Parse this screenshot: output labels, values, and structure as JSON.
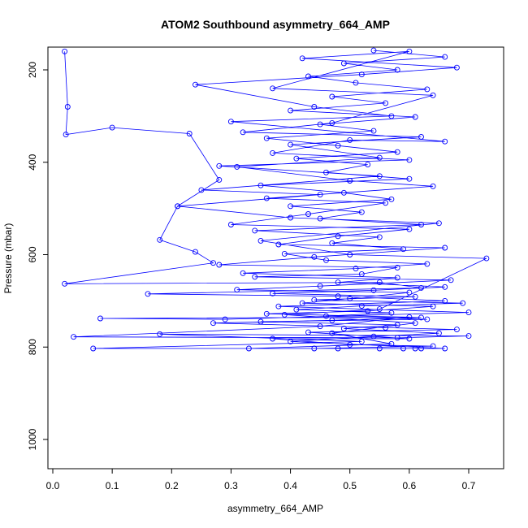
{
  "chart_data": {
    "type": "line",
    "title": "ATOM2 Southbound asymmetry_664_AMP",
    "xlabel": "asymmetry_664_AMP",
    "ylabel": "Pressure (mbar)",
    "xlim": [
      0.0,
      0.75
    ],
    "ylim": [
      1060,
      155
    ],
    "y_reversed": true,
    "grid": false,
    "legend": "none",
    "x_ticks": [
      "0.0",
      "0.1",
      "0.2",
      "0.3",
      "0.4",
      "0.5",
      "0.6",
      "0.7"
    ],
    "y_ticks": [
      "200",
      "400",
      "600",
      "800",
      "1000"
    ],
    "series_color": "#0000ff",
    "marker": "open-circle",
    "series": [
      {
        "values": [
          [
            0.02,
            160
          ],
          [
            0.025,
            280
          ],
          [
            0.022,
            340
          ],
          [
            0.1,
            325
          ],
          [
            0.23,
            338
          ],
          [
            0.28,
            438
          ],
          [
            0.21,
            495
          ],
          [
            0.18,
            568
          ],
          [
            0.24,
            594
          ],
          [
            0.27,
            618
          ],
          [
            0.02,
            663
          ],
          [
            0.55,
            660
          ],
          [
            0.62,
            672
          ],
          [
            0.16,
            685
          ],
          [
            0.48,
            690
          ],
          [
            0.66,
            700
          ],
          [
            0.38,
            712
          ],
          [
            0.7,
            725
          ],
          [
            0.29,
            740
          ],
          [
            0.08,
            738
          ],
          [
            0.6,
            735
          ],
          [
            0.45,
            755
          ],
          [
            0.035,
            778
          ],
          [
            0.58,
            780
          ],
          [
            0.7,
            776
          ],
          [
            0.18,
            772
          ],
          [
            0.52,
            788
          ],
          [
            0.068,
            803
          ],
          [
            0.62,
            803
          ],
          [
            0.33,
            803
          ],
          [
            0.57,
            793
          ],
          [
            0.47,
            770
          ],
          [
            0.61,
            748
          ],
          [
            0.39,
            730
          ],
          [
            0.55,
            718
          ],
          [
            0.73,
            608
          ],
          [
            0.5,
            600
          ],
          [
            0.35,
            570
          ],
          [
            0.65,
            532
          ],
          [
            0.4,
            520
          ],
          [
            0.21,
            495
          ],
          [
            0.45,
            470
          ],
          [
            0.25,
            460
          ],
          [
            0.55,
            430
          ],
          [
            0.28,
            408
          ],
          [
            0.6,
            395
          ],
          [
            0.37,
            380
          ],
          [
            0.5,
            352
          ],
          [
            0.66,
            355
          ],
          [
            0.3,
            312
          ],
          [
            0.57,
            300
          ],
          [
            0.44,
            280
          ],
          [
            0.24,
            232
          ],
          [
            0.52,
            210
          ],
          [
            0.68,
            195
          ],
          [
            0.42,
            175
          ],
          [
            0.6,
            160
          ],
          [
            0.37,
            240
          ],
          [
            0.64,
            255
          ],
          [
            0.47,
            315
          ],
          [
            0.32,
            335
          ],
          [
            0.62,
            345
          ],
          [
            0.4,
            362
          ],
          [
            0.55,
            390
          ],
          [
            0.31,
            410
          ],
          [
            0.5,
            440
          ],
          [
            0.64,
            452
          ],
          [
            0.36,
            478
          ],
          [
            0.56,
            488
          ],
          [
            0.43,
            512
          ],
          [
            0.3,
            535
          ],
          [
            0.6,
            545
          ],
          [
            0.48,
            560
          ],
          [
            0.38,
            578
          ],
          [
            0.66,
            585
          ],
          [
            0.44,
            605
          ],
          [
            0.28,
            622
          ],
          [
            0.58,
            628
          ],
          [
            0.52,
            642
          ],
          [
            0.34,
            648
          ],
          [
            0.67,
            655
          ],
          [
            0.45,
            668
          ],
          [
            0.31,
            676
          ],
          [
            0.6,
            682
          ],
          [
            0.5,
            695
          ],
          [
            0.42,
            705
          ],
          [
            0.64,
            712
          ],
          [
            0.53,
            722
          ],
          [
            0.36,
            728
          ],
          [
            0.62,
            736
          ],
          [
            0.47,
            742
          ],
          [
            0.27,
            748
          ],
          [
            0.56,
            758
          ],
          [
            0.68,
            762
          ],
          [
            0.43,
            768
          ],
          [
            0.6,
            782
          ],
          [
            0.37,
            782
          ],
          [
            0.5,
            795
          ],
          [
            0.64,
            798
          ],
          [
            0.44,
            803
          ],
          [
            0.55,
            803
          ],
          [
            0.59,
            803
          ],
          [
            0.61,
            803
          ],
          [
            0.48,
            803
          ],
          [
            0.66,
            803
          ],
          [
            0.4,
            788
          ],
          [
            0.54,
            777
          ],
          [
            0.65,
            770
          ],
          [
            0.49,
            760
          ],
          [
            0.58,
            752
          ],
          [
            0.35,
            745
          ],
          [
            0.63,
            740
          ],
          [
            0.46,
            733
          ],
          [
            0.57,
            726
          ],
          [
            0.41,
            719
          ],
          [
            0.52,
            711
          ],
          [
            0.69,
            705
          ],
          [
            0.44,
            698
          ],
          [
            0.61,
            691
          ],
          [
            0.37,
            684
          ],
          [
            0.54,
            677
          ],
          [
            0.66,
            670
          ],
          [
            0.48,
            660
          ],
          [
            0.58,
            650
          ],
          [
            0.32,
            640
          ],
          [
            0.51,
            630
          ],
          [
            0.63,
            620
          ],
          [
            0.46,
            612
          ],
          [
            0.39,
            598
          ],
          [
            0.59,
            588
          ],
          [
            0.47,
            575
          ],
          [
            0.55,
            562
          ],
          [
            0.34,
            548
          ],
          [
            0.62,
            535
          ],
          [
            0.45,
            522
          ],
          [
            0.52,
            508
          ],
          [
            0.4,
            495
          ],
          [
            0.57,
            480
          ],
          [
            0.49,
            466
          ],
          [
            0.35,
            450
          ],
          [
            0.6,
            436
          ],
          [
            0.46,
            422
          ],
          [
            0.53,
            405
          ],
          [
            0.41,
            392
          ],
          [
            0.58,
            378
          ],
          [
            0.48,
            364
          ],
          [
            0.36,
            348
          ],
          [
            0.54,
            332
          ],
          [
            0.45,
            318
          ],
          [
            0.61,
            302
          ],
          [
            0.4,
            288
          ],
          [
            0.56,
            272
          ],
          [
            0.47,
            258
          ],
          [
            0.63,
            242
          ],
          [
            0.51,
            228
          ],
          [
            0.43,
            214
          ],
          [
            0.58,
            200
          ],
          [
            0.49,
            186
          ],
          [
            0.66,
            172
          ],
          [
            0.54,
            158
          ]
        ]
      }
    ]
  }
}
